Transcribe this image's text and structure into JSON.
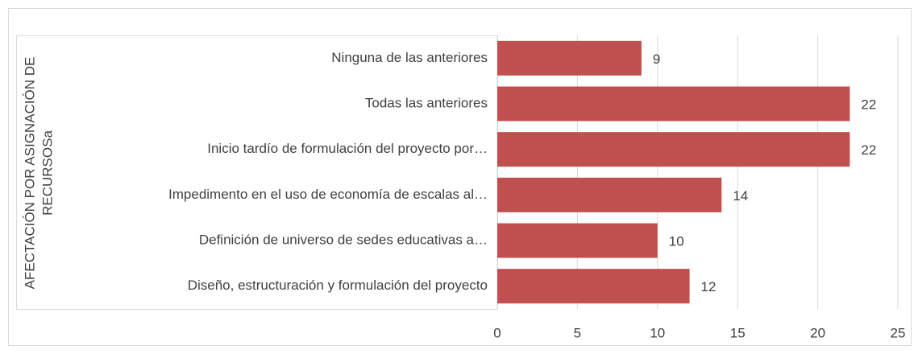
{
  "chart_data": {
    "type": "bar",
    "orientation": "horizontal",
    "ylabel": [
      "AFECTACIÓN POR ASIGNACIÓN DE",
      "RECURSOSa"
    ],
    "categories": [
      "Ninguna de las anteriores",
      "Todas las anteriores",
      "Inicio tardío de formulación del proyecto por…",
      "Impedimento en el uso de economía de escalas al…",
      "Definición de universo de sedes educativas a…",
      "Diseño, estructuración y formulación del proyecto"
    ],
    "values": [
      9,
      22,
      22,
      14,
      10,
      12
    ],
    "color": "#c0504d",
    "xlim": [
      0,
      25
    ],
    "xticks": [
      0,
      5,
      10,
      15,
      20,
      25
    ],
    "grid": true
  }
}
